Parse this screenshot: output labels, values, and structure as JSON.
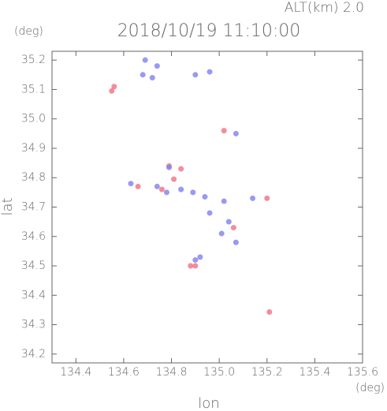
{
  "chart_data": {
    "type": "scatter",
    "title": "2018/10/19 11:10:00",
    "subtitle": "ALT(km) 2.0",
    "x_label": "lon",
    "y_label": "lat",
    "x_unit": "(deg)",
    "y_unit": "(deg)",
    "xlim": [
      134.3,
      135.6
    ],
    "ylim": [
      34.17,
      35.23
    ],
    "xticks": [
      134.4,
      134.6,
      134.8,
      {
        "value": 135,
        "label": "135.0"
      },
      135.2,
      135.4,
      135.6
    ],
    "yticks": [
      34.2,
      34.3,
      34.4,
      34.5,
      34.6,
      34.7,
      34.8,
      34.9,
      {
        "value": 35,
        "label": "35.0"
      },
      35.1,
      35.2
    ],
    "grid": false,
    "series": [
      {
        "color": "#f07080",
        "x": [
          134.56,
          134.55,
          135.02,
          134.81,
          134.76,
          134.66,
          135.06,
          134.88,
          134.9,
          135.2,
          135.21,
          134.84,
          134.79
        ],
        "y": [
          35.11,
          35.095,
          34.96,
          34.795,
          34.76,
          34.77,
          34.63,
          34.5,
          34.5,
          34.73,
          34.343,
          34.83,
          34.84
        ]
      },
      {
        "color": "#8080f0",
        "x": [
          134.69,
          134.68,
          134.72,
          134.74,
          134.79,
          134.84,
          134.89,
          134.94,
          134.96,
          135.02,
          135.04,
          135.01,
          134.63,
          134.74,
          134.78,
          134.9,
          134.92,
          135.14,
          135.07,
          135.07,
          134.96,
          134.9
        ],
        "y": [
          35.2,
          35.15,
          35.14,
          35.18,
          34.835,
          34.76,
          34.75,
          34.735,
          34.68,
          34.72,
          34.65,
          34.61,
          34.78,
          34.77,
          34.75,
          34.52,
          34.53,
          34.73,
          34.58,
          34.95,
          35.16,
          35.15
        ]
      }
    ]
  }
}
